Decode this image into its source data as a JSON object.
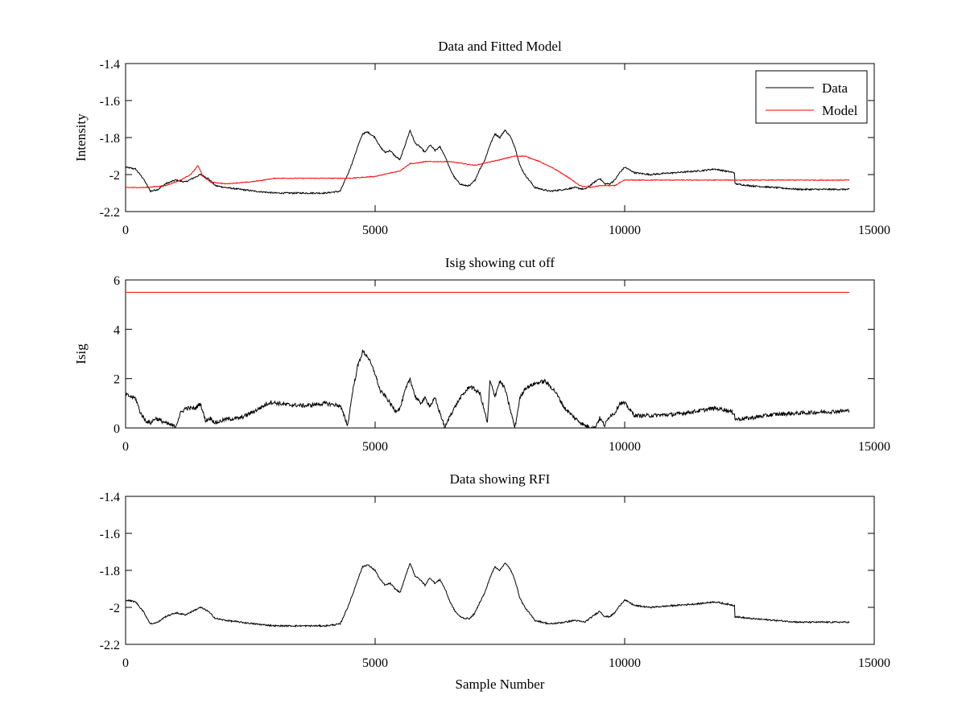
{
  "chart_data": [
    {
      "type": "line",
      "title": "Data and Fitted Model",
      "xlabel": "",
      "ylabel": "Intensity",
      "xlim": [
        0,
        15000
      ],
      "ylim": [
        -2.2,
        -1.4
      ],
      "xticks": [
        0,
        5000,
        10000,
        15000
      ],
      "xtick_labels": [
        "0",
        "5000",
        "10000",
        "15000"
      ],
      "yticks": [
        -1.4,
        -1.6,
        -1.8,
        -2,
        -2.2
      ],
      "ytick_labels": [
        "-1.4",
        "-1.6",
        "-1.8",
        "-2",
        "-2.2"
      ],
      "grid": false,
      "legend": {
        "placement": "top-right",
        "entries": [
          "Data",
          "Model"
        ]
      },
      "series": [
        {
          "name": "Data",
          "color": "#000000",
          "noise": 0.004,
          "x": [
            0,
            200,
            350,
            500,
            650,
            800,
            1000,
            1200,
            1350,
            1500,
            1650,
            1800,
            2000,
            2300,
            2600,
            3000,
            3500,
            4000,
            4300,
            4450,
            4550,
            4650,
            4750,
            4850,
            5000,
            5100,
            5200,
            5300,
            5400,
            5500,
            5600,
            5700,
            5800,
            5900,
            6000,
            6100,
            6200,
            6300,
            6400,
            6500,
            6600,
            6700,
            6800,
            6900,
            7000,
            7100,
            7200,
            7300,
            7400,
            7500,
            7600,
            7700,
            7800,
            7900,
            8000,
            8200,
            8500,
            8800,
            9000,
            9200,
            9400,
            9500,
            9600,
            9700,
            9800,
            9900,
            10000,
            10200,
            10500,
            11000,
            11500,
            11800,
            12000,
            12200,
            12210,
            12500,
            13000,
            13500,
            14000,
            14500
          ],
          "y": [
            -1.96,
            -1.97,
            -2.02,
            -2.09,
            -2.08,
            -2.05,
            -2.03,
            -2.04,
            -2.02,
            -2.0,
            -2.02,
            -2.06,
            -2.07,
            -2.08,
            -2.09,
            -2.1,
            -2.1,
            -2.1,
            -2.09,
            -2.0,
            -1.93,
            -1.85,
            -1.78,
            -1.77,
            -1.8,
            -1.85,
            -1.88,
            -1.87,
            -1.9,
            -1.92,
            -1.84,
            -1.76,
            -1.83,
            -1.85,
            -1.88,
            -1.84,
            -1.87,
            -1.85,
            -1.9,
            -1.97,
            -2.02,
            -2.05,
            -2.06,
            -2.06,
            -2.03,
            -1.97,
            -1.92,
            -1.84,
            -1.78,
            -1.8,
            -1.76,
            -1.79,
            -1.85,
            -1.95,
            -2.0,
            -2.07,
            -2.09,
            -2.08,
            -2.07,
            -2.08,
            -2.04,
            -2.02,
            -2.05,
            -2.05,
            -2.03,
            -1.99,
            -1.96,
            -1.99,
            -2.0,
            -1.99,
            -1.98,
            -1.97,
            -1.98,
            -1.99,
            -2.05,
            -2.06,
            -2.07,
            -2.08,
            -2.08,
            -2.08
          ]
        },
        {
          "name": "Model",
          "color": "#ff0000",
          "noise": 0.002,
          "x": [
            0,
            400,
            800,
            1100,
            1300,
            1400,
            1450,
            1550,
            1700,
            2000,
            2500,
            3000,
            3500,
            4000,
            4500,
            5000,
            5500,
            5700,
            5800,
            6000,
            6500,
            7000,
            7500,
            7800,
            8000,
            8300,
            8600,
            8900,
            9100,
            9300,
            9500,
            9800,
            10000,
            10500,
            12000,
            14500
          ],
          "y": [
            -2.07,
            -2.07,
            -2.06,
            -2.03,
            -2.0,
            -1.97,
            -1.95,
            -2.01,
            -2.04,
            -2.05,
            -2.04,
            -2.02,
            -2.02,
            -2.02,
            -2.02,
            -2.01,
            -1.98,
            -1.94,
            -1.94,
            -1.93,
            -1.93,
            -1.95,
            -1.92,
            -1.9,
            -1.9,
            -1.93,
            -1.97,
            -2.02,
            -2.06,
            -2.07,
            -2.06,
            -2.06,
            -2.03,
            -2.03,
            -2.03,
            -2.03
          ]
        }
      ]
    },
    {
      "type": "line",
      "title": "Isig showing cut off",
      "xlabel": "",
      "ylabel": "Isig",
      "xlim": [
        0,
        15000
      ],
      "ylim": [
        0,
        6
      ],
      "xticks": [
        0,
        5000,
        10000,
        15000
      ],
      "xtick_labels": [
        "0",
        "5000",
        "10000",
        "15000"
      ],
      "yticks": [
        0,
        2,
        4,
        6
      ],
      "ytick_labels": [
        "0",
        "2",
        "4",
        "6"
      ],
      "grid": false,
      "series": [
        {
          "color": "#000000",
          "noise": 0.08,
          "x": [
            0,
            200,
            300,
            400,
            500,
            600,
            800,
            1000,
            1100,
            1200,
            1400,
            1500,
            1600,
            1700,
            1800,
            2000,
            2300,
            2600,
            2900,
            3200,
            3600,
            4000,
            4300,
            4450,
            4550,
            4650,
            4750,
            4850,
            5000,
            5100,
            5200,
            5300,
            5400,
            5500,
            5600,
            5700,
            5800,
            5900,
            6000,
            6100,
            6200,
            6300,
            6400,
            6500,
            6700,
            6900,
            7100,
            7200,
            7250,
            7300,
            7400,
            7500,
            7600,
            7700,
            7800,
            7900,
            8000,
            8200,
            8400,
            8600,
            8800,
            9000,
            9200,
            9400,
            9500,
            9600,
            9700,
            9800,
            9900,
            10000,
            10200,
            10500,
            11000,
            11500,
            11800,
            12000,
            12200,
            12210,
            12500,
            13000,
            13500,
            14000,
            14500
          ],
          "y": [
            1.35,
            1.2,
            0.6,
            0.3,
            0.2,
            0.4,
            0.2,
            0.05,
            0.6,
            0.8,
            0.8,
            1.0,
            0.3,
            0.4,
            0.2,
            0.35,
            0.4,
            0.7,
            1.05,
            0.95,
            0.9,
            1.0,
            0.9,
            0.1,
            1.5,
            2.5,
            3.1,
            2.9,
            2.2,
            1.5,
            1.3,
            1.0,
            0.7,
            0.8,
            1.5,
            2.0,
            1.3,
            1.0,
            1.2,
            0.9,
            1.2,
            0.6,
            0.0,
            0.5,
            1.2,
            1.7,
            1.4,
            0.6,
            0.2,
            1.9,
            1.3,
            1.9,
            1.6,
            0.8,
            0.0,
            1.2,
            1.6,
            1.8,
            1.9,
            1.5,
            0.8,
            0.4,
            0.1,
            0.0,
            0.4,
            0.1,
            0.5,
            0.6,
            1.0,
            1.0,
            0.5,
            0.5,
            0.55,
            0.7,
            0.8,
            0.75,
            0.6,
            0.35,
            0.4,
            0.55,
            0.6,
            0.65,
            0.7
          ]
        },
        {
          "color": "#ff0000",
          "noise": 0,
          "x": [
            0,
            14500
          ],
          "y": [
            5.5,
            5.5
          ]
        }
      ]
    },
    {
      "type": "line",
      "title": "Data showing RFI",
      "xlabel": "Sample Number",
      "ylabel": "",
      "xlim": [
        0,
        15000
      ],
      "ylim": [
        -2.2,
        -1.4
      ],
      "xticks": [
        0,
        5000,
        10000,
        15000
      ],
      "xtick_labels": [
        "0",
        "5000",
        "10000",
        "15000"
      ],
      "yticks": [
        -1.4,
        -1.6,
        -1.8,
        -2,
        -2.2
      ],
      "ytick_labels": [
        "-1.4",
        "-1.6",
        "-1.8",
        "-2",
        "-2.2"
      ],
      "grid": false,
      "series": [
        {
          "color": "#000000",
          "noise": 0.004,
          "x": [
            0,
            200,
            350,
            500,
            650,
            800,
            1000,
            1200,
            1350,
            1500,
            1650,
            1800,
            2000,
            2300,
            2600,
            3000,
            3500,
            4000,
            4300,
            4450,
            4550,
            4650,
            4750,
            4850,
            5000,
            5100,
            5200,
            5300,
            5400,
            5500,
            5600,
            5700,
            5800,
            5900,
            6000,
            6100,
            6200,
            6300,
            6400,
            6500,
            6600,
            6700,
            6800,
            6900,
            7000,
            7100,
            7200,
            7300,
            7400,
            7500,
            7600,
            7700,
            7800,
            7900,
            8000,
            8200,
            8500,
            8800,
            9000,
            9200,
            9400,
            9500,
            9600,
            9700,
            9800,
            9900,
            10000,
            10200,
            10500,
            11000,
            11500,
            11800,
            12000,
            12200,
            12210,
            12500,
            13000,
            13500,
            14000,
            14500
          ],
          "y": [
            -1.96,
            -1.97,
            -2.02,
            -2.09,
            -2.08,
            -2.05,
            -2.03,
            -2.04,
            -2.02,
            -2.0,
            -2.02,
            -2.06,
            -2.07,
            -2.08,
            -2.09,
            -2.1,
            -2.1,
            -2.1,
            -2.09,
            -2.0,
            -1.93,
            -1.85,
            -1.78,
            -1.77,
            -1.8,
            -1.85,
            -1.88,
            -1.87,
            -1.9,
            -1.92,
            -1.84,
            -1.76,
            -1.83,
            -1.85,
            -1.88,
            -1.84,
            -1.87,
            -1.85,
            -1.9,
            -1.97,
            -2.02,
            -2.05,
            -2.06,
            -2.06,
            -2.03,
            -1.97,
            -1.92,
            -1.84,
            -1.78,
            -1.8,
            -1.76,
            -1.79,
            -1.85,
            -1.95,
            -2.0,
            -2.07,
            -2.09,
            -2.08,
            -2.07,
            -2.08,
            -2.04,
            -2.02,
            -2.05,
            -2.05,
            -2.03,
            -1.99,
            -1.96,
            -1.99,
            -2.0,
            -1.99,
            -1.98,
            -1.97,
            -1.98,
            -1.99,
            -2.05,
            -2.06,
            -2.07,
            -2.08,
            -2.08,
            -2.08
          ]
        }
      ]
    }
  ]
}
